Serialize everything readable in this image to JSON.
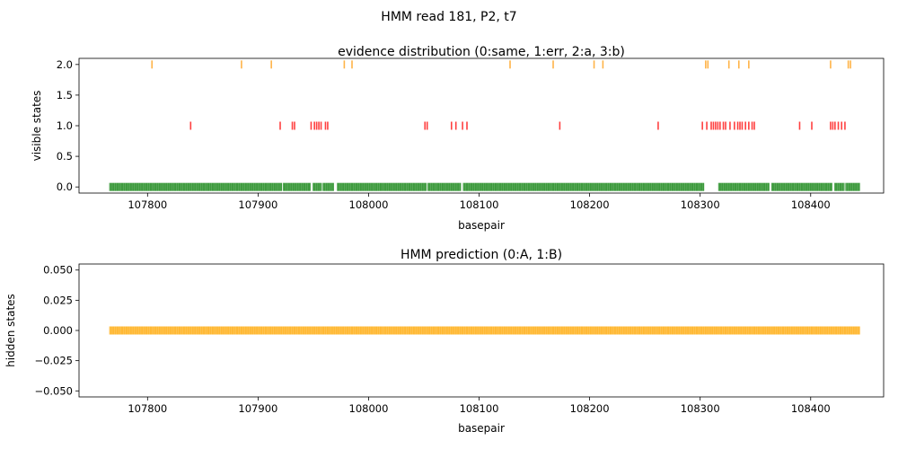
{
  "figure": {
    "suptitle": "HMM read 181, P2, t7"
  },
  "chart_data": [
    {
      "type": "scatter",
      "title": "evidence distribution (0:same, 1:err, 2:a, 3:b)",
      "xlabel": "basepair",
      "ylabel": "visible states",
      "xlim": [
        107738,
        108466
      ],
      "ylim": [
        -0.1,
        2.1
      ],
      "xticks": [
        107800,
        107900,
        108000,
        108100,
        108200,
        108300,
        108400
      ],
      "yticks": [
        0.0,
        0.5,
        1.0,
        1.5,
        2.0
      ],
      "ytick_decimals": 1,
      "grid": false,
      "marker": "|",
      "series": [
        {
          "y": 2.0,
          "color": "#ffb347",
          "x": [
            107804,
            107885,
            107912,
            107978,
            107985,
            108128,
            108167,
            108204,
            108212,
            108305,
            108307,
            108326,
            108335,
            108344,
            108418,
            108434,
            108436
          ]
        },
        {
          "y": 1.0,
          "color": "#ff4040",
          "x": [
            107839,
            107920,
            107931,
            107933,
            107948,
            107951,
            107953,
            107955,
            107957,
            107961,
            107963,
            108051,
            108053,
            108075,
            108079,
            108085,
            108089,
            108173,
            108262,
            108302,
            108306,
            108310,
            108312,
            108314,
            108316,
            108318,
            108321,
            108323,
            108327,
            108331,
            108334,
            108336,
            108338,
            108341,
            108344,
            108347,
            108349,
            108390,
            108401,
            108418,
            108420,
            108422,
            108425,
            108428,
            108431
          ]
        },
        {
          "y": 0.0,
          "color": "#3d9a3d",
          "segments": [
            [
              107766,
              107921
            ],
            [
              107923,
              107947
            ],
            [
              107950,
              107957
            ],
            [
              107959,
              107968
            ],
            [
              107972,
              108052
            ],
            [
              108054,
              108083
            ],
            [
              108086,
              108303
            ],
            [
              108317,
              108362
            ],
            [
              108365,
              108419
            ],
            [
              108422,
              108430
            ],
            [
              108432,
              108444
            ]
          ]
        }
      ]
    },
    {
      "type": "scatter",
      "title": "HMM prediction (0:A, 1:B)",
      "xlabel": "basepair",
      "ylabel": "hidden states",
      "xlim": [
        107738,
        108466
      ],
      "ylim": [
        -0.055,
        0.055
      ],
      "xticks": [
        107800,
        107900,
        108000,
        108100,
        108200,
        108300,
        108400
      ],
      "yticks": [
        -0.05,
        -0.025,
        0.0,
        0.025,
        0.05
      ],
      "ytick_decimals": 3,
      "grid": false,
      "marker": "|",
      "series": [
        {
          "y": 0.0,
          "color": "#ffb833",
          "segments": [
            [
              107766,
              108444
            ]
          ]
        }
      ]
    }
  ]
}
